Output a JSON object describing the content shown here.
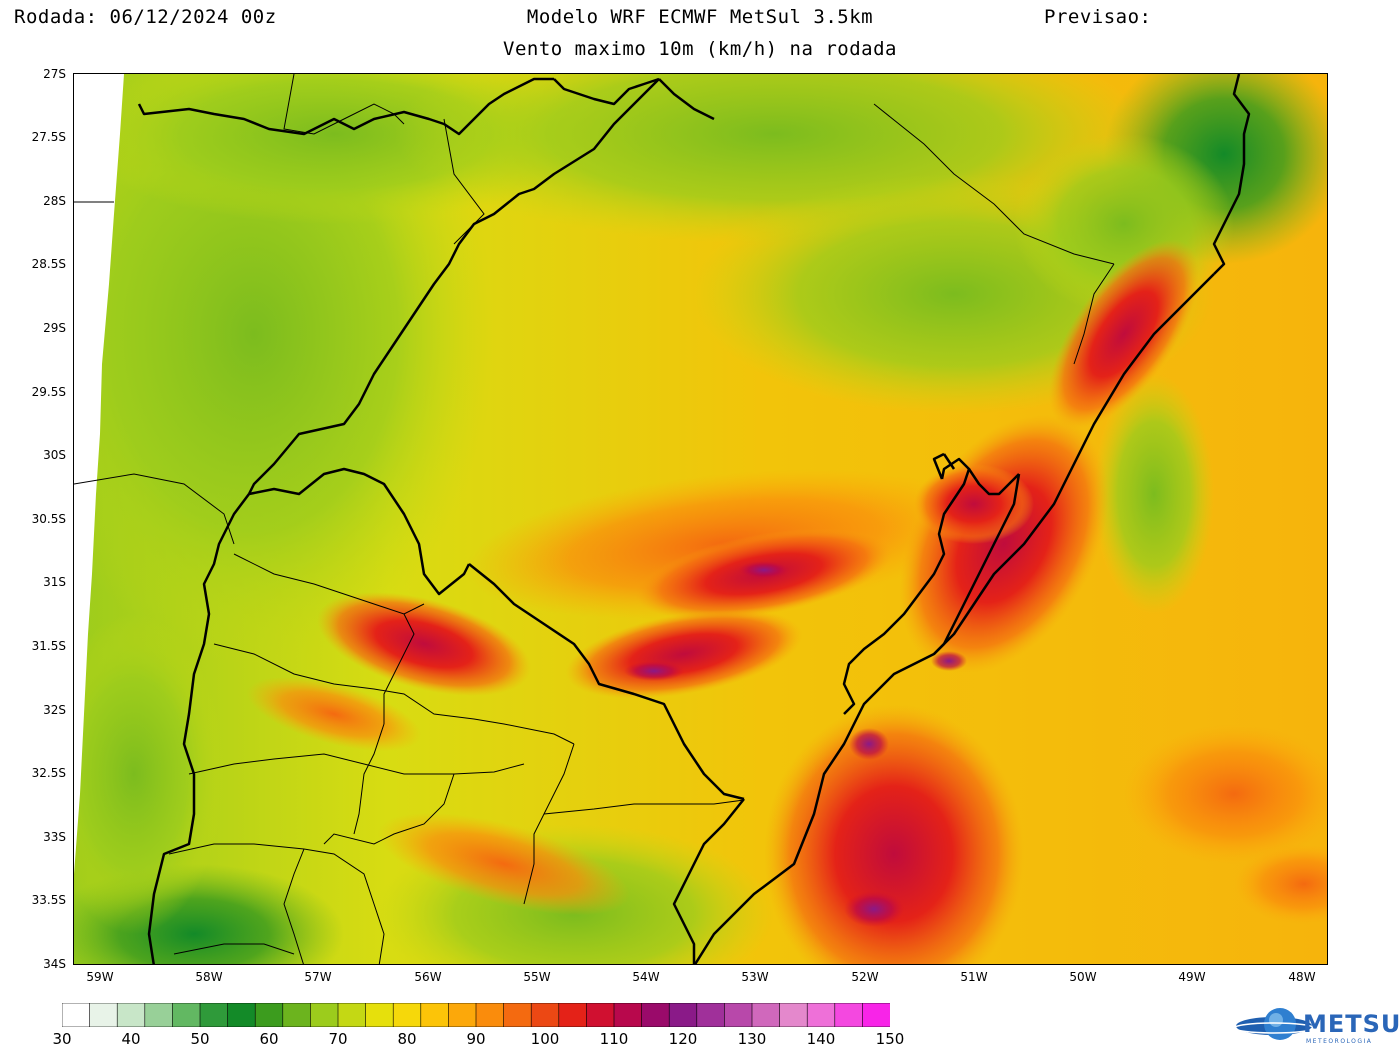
{
  "header": {
    "run": "Rodada: 06/12/2024 00z",
    "model": "Modelo WRF ECMWF MetSul 3.5km",
    "forecast": "Previsao:",
    "subtitle": "Vento maximo 10m (km/h) na rodada"
  },
  "map": {
    "region": "Rio Grande do Sul / Uruguay",
    "lat_range": [
      -34,
      -27
    ],
    "lon_range": [
      -59.25,
      -47.8
    ],
    "lat_ticks": [
      "27S",
      "27.5S",
      "28S",
      "28.5S",
      "29S",
      "29.5S",
      "30S",
      "30.5S",
      "31S",
      "31.5S",
      "32S",
      "32.5S",
      "33S",
      "33.5S",
      "34S"
    ],
    "lon_ticks": [
      "59W",
      "58W",
      "57W",
      "56W",
      "55W",
      "54W",
      "53W",
      "52W",
      "51W",
      "50W",
      "49W",
      "48W"
    ],
    "field_units": "km/h"
  },
  "colorbar": {
    "labels": [
      "30",
      "40",
      "50",
      "60",
      "70",
      "80",
      "90",
      "100",
      "110",
      "120",
      "130",
      "140",
      "150"
    ],
    "colors": [
      "#ffffff",
      "#e8f3e8",
      "#c8e6c8",
      "#98d098",
      "#62b862",
      "#2f9a3a",
      "#138a28",
      "#3c9c1e",
      "#6cb41e",
      "#9ccc1c",
      "#c4d814",
      "#e6e00c",
      "#f6d80a",
      "#fcc408",
      "#fca80a",
      "#fa8c0c",
      "#f46a10",
      "#ec4814",
      "#e42218",
      "#d01030",
      "#b8084c",
      "#9a0a6a",
      "#8a1a88",
      "#a0309a",
      "#b848aa",
      "#d068bc",
      "#e488cc",
      "#ee70d8",
      "#f448e0",
      "#f824e8"
    ]
  },
  "logo": {
    "name": "METSUL",
    "sub": "METEOROLOGIA"
  }
}
